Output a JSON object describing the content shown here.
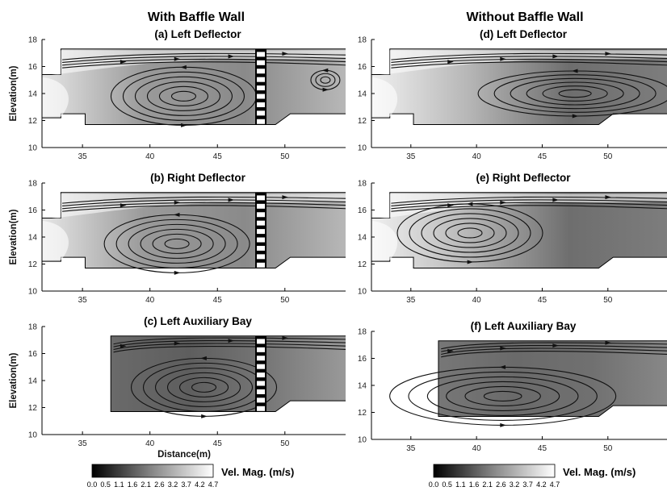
{
  "column_titles": [
    "With Baffle Wall",
    "Without Baffle Wall"
  ],
  "colorbar": {
    "title": "Vel. Mag. (m/s)",
    "ticks": [
      "0.0",
      "0.5",
      "1.1",
      "1.6",
      "2.1",
      "2.6",
      "3.2",
      "3.7",
      "4.2",
      "4.7"
    ],
    "range": [
      0.0,
      4.7
    ]
  },
  "colors": {
    "background": "#ffffff",
    "slow_fluid": "#5a5a5a",
    "fast_fluid": "#f2f2f2",
    "streamline": "#111111"
  },
  "chart_data": [
    {
      "type": "streamline",
      "title": "(a) Left Deflector",
      "column": "With Baffle Wall",
      "xlabel": "",
      "ylabel": "Elevation(m)",
      "xlim": [
        32,
        54.5
      ],
      "ylim": [
        10,
        18
      ],
      "xticks": [
        "35",
        "40",
        "45",
        "50"
      ],
      "yticks": [
        "10",
        "12",
        "14",
        "16",
        "18"
      ],
      "baffle_wall": true,
      "eddies": [
        {
          "x": 42.5,
          "y": 13.8,
          "label": "main recirculation"
        },
        {
          "x": 53.0,
          "y": 15.0,
          "label": "secondary vortex"
        }
      ]
    },
    {
      "type": "streamline",
      "title": "(b) Right Deflector",
      "column": "With Baffle Wall",
      "xlabel": "",
      "ylabel": "Elevation(m)",
      "xlim": [
        32,
        54.5
      ],
      "ylim": [
        10,
        18
      ],
      "xticks": [
        "35",
        "40",
        "45",
        "50"
      ],
      "yticks": [
        "10",
        "12",
        "14",
        "16",
        "18"
      ],
      "baffle_wall": true,
      "eddies": [
        {
          "x": 42.0,
          "y": 13.5,
          "label": "main recirculation"
        }
      ]
    },
    {
      "type": "streamline",
      "title": "(c) Left Auxiliary Bay",
      "column": "With Baffle Wall",
      "xlabel": "Distance(m)",
      "ylabel": "Elevation(m)",
      "xlim": [
        32,
        54.5
      ],
      "ylim": [
        10,
        18
      ],
      "xticks": [
        "35",
        "40",
        "45",
        "50"
      ],
      "yticks": [
        "10",
        "12",
        "14",
        "16",
        "18"
      ],
      "baffle_wall": true,
      "eddies": [
        {
          "x": 44.0,
          "y": 13.5,
          "label": "main recirculation"
        }
      ]
    },
    {
      "type": "streamline",
      "title": "(d) Left Deflector",
      "column": "Without Baffle Wall",
      "xlabel": "",
      "ylabel": "",
      "xlim": [
        32,
        54.5
      ],
      "ylim": [
        10,
        18
      ],
      "xticks": [
        "35",
        "40",
        "45",
        "50"
      ],
      "yticks": [
        "10",
        "12",
        "14",
        "16",
        "18"
      ],
      "baffle_wall": false,
      "eddies": [
        {
          "x": 47.5,
          "y": 14.0,
          "label": "elongated recirculation"
        }
      ]
    },
    {
      "type": "streamline",
      "title": "(e) Right Deflector",
      "column": "Without Baffle Wall",
      "xlabel": "",
      "ylabel": "",
      "xlim": [
        32,
        54.5
      ],
      "ylim": [
        10,
        18
      ],
      "xticks": [
        "35",
        "40",
        "45",
        "50"
      ],
      "yticks": [
        "10",
        "12",
        "14",
        "16",
        "18"
      ],
      "baffle_wall": false,
      "eddies": [
        {
          "x": 39.5,
          "y": 14.3,
          "label": "main recirculation"
        }
      ]
    },
    {
      "type": "streamline",
      "title": "(f) Left Auxiliary Bay",
      "column": "Without Baffle Wall",
      "xlabel": "",
      "ylabel": "",
      "xlim": [
        32,
        54.5
      ],
      "ylim": [
        10,
        18
      ],
      "xticks": [
        "35",
        "40",
        "45",
        "50"
      ],
      "yticks": [
        "10",
        "12",
        "14",
        "16",
        "18"
      ],
      "baffle_wall": false,
      "eddies": [
        {
          "x": 42.0,
          "y": 13.2,
          "label": "main recirculation"
        }
      ]
    }
  ]
}
